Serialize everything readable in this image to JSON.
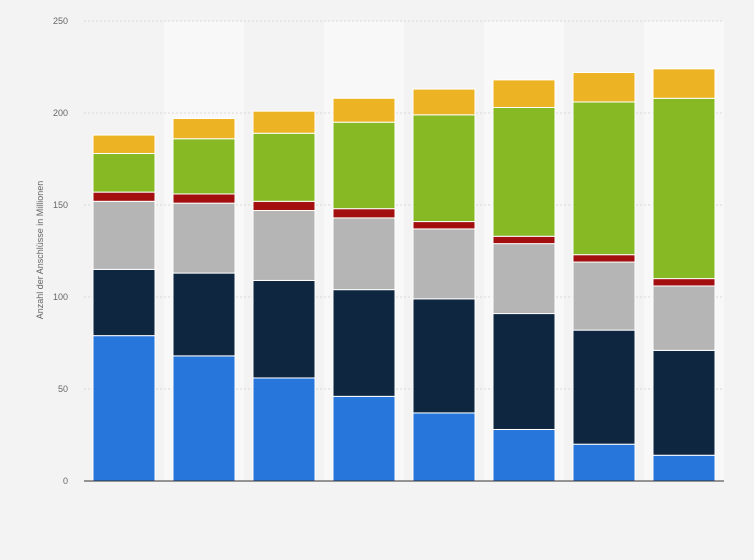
{
  "chart_data": {
    "type": "bar",
    "stacked": true,
    "categories": [
      "",
      "",
      "",
      "",
      "",
      "",
      "",
      ""
    ],
    "ylabel": "Anzahl der Anschlüsse in Millionen",
    "ylim": [
      0,
      250
    ],
    "yticks": [
      0,
      50,
      100,
      150,
      200,
      250
    ],
    "grid": true,
    "series": [
      {
        "color": "#2776db",
        "values": [
          79,
          68,
          56,
          46,
          37,
          28,
          20,
          14
        ]
      },
      {
        "color": "#0e2640",
        "values": [
          36,
          45,
          53,
          58,
          62,
          63,
          62,
          57
        ]
      },
      {
        "color": "#b5b5b5",
        "values": [
          37,
          38,
          38,
          39,
          38,
          38,
          37,
          35
        ]
      },
      {
        "color": "#a30e0e",
        "values": [
          5,
          5,
          5,
          5,
          4,
          4,
          4,
          4
        ]
      },
      {
        "color": "#86b924",
        "values": [
          21,
          30,
          37,
          47,
          58,
          70,
          83,
          98
        ]
      },
      {
        "color": "#ecb424",
        "values": [
          10,
          11,
          12,
          13,
          14,
          15,
          16,
          16
        ]
      }
    ]
  }
}
